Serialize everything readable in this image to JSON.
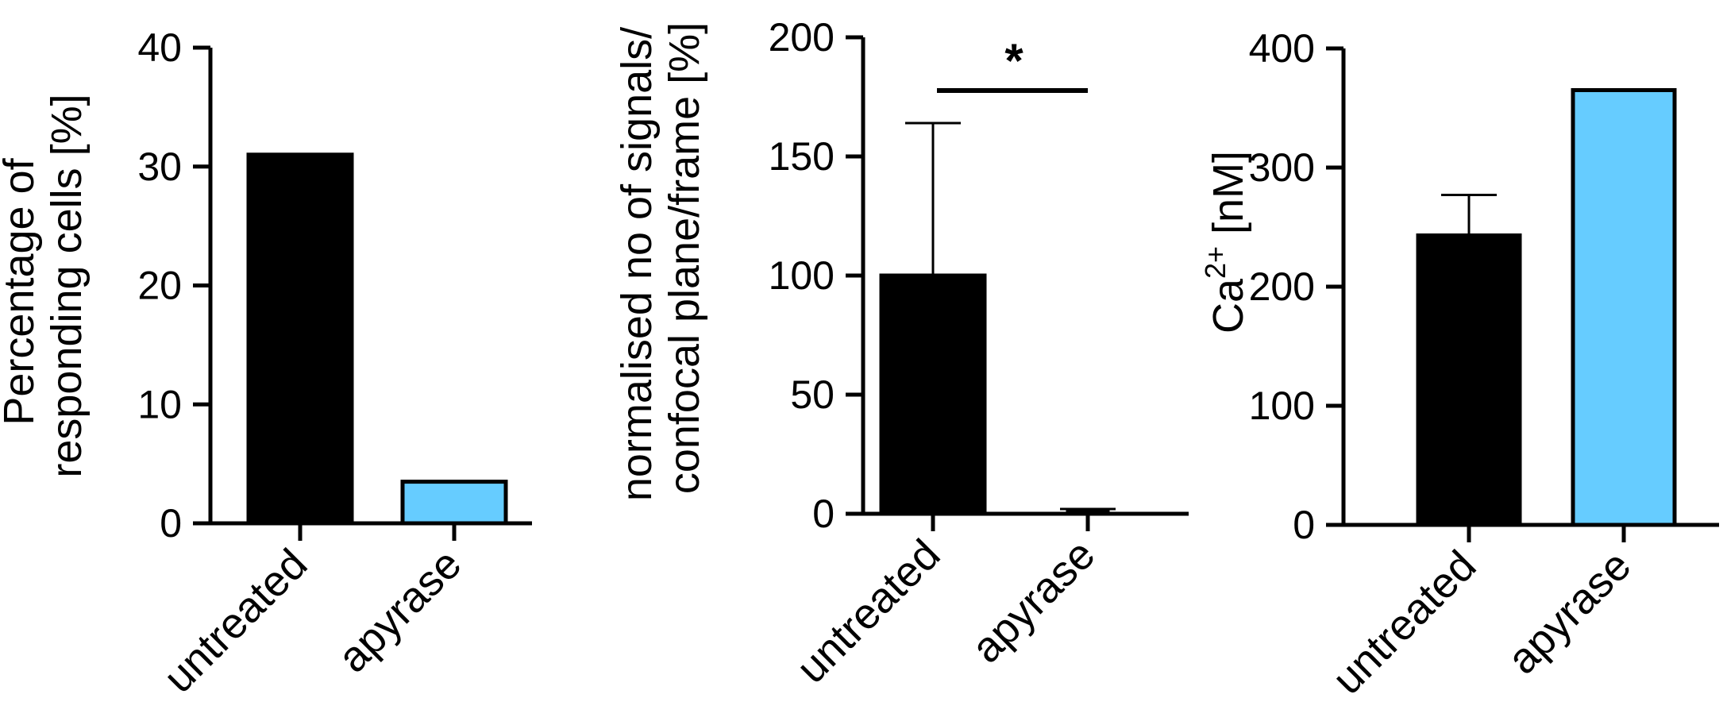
{
  "colors": {
    "untreated": "#000000",
    "apyrase": "#66CCFF",
    "axis": "#000000"
  },
  "chart_data": [
    {
      "type": "bar",
      "categories": [
        "untreated",
        "apyrase"
      ],
      "values": [
        31,
        3.5
      ],
      "errors": [
        null,
        null
      ],
      "ylabel_lines": [
        "Percentage of",
        "responding cells [%]"
      ],
      "ylim": [
        0,
        40
      ],
      "yticks": [
        0,
        10,
        20,
        30,
        40
      ],
      "yticks_labels": [
        "0",
        "10",
        "20",
        "30",
        "40"
      ],
      "grid": false,
      "significance": null
    },
    {
      "type": "bar",
      "categories": [
        "untreated",
        "apyrase"
      ],
      "values": [
        100,
        1
      ],
      "errors": [
        64,
        1
      ],
      "ylabel_lines": [
        "normalised no of signals/",
        "confocal plane/frame [%]"
      ],
      "ylim": [
        0,
        200
      ],
      "yticks": [
        0,
        50,
        100,
        150,
        200
      ],
      "yticks_labels": [
        "0",
        "50",
        "100",
        "150",
        "200"
      ],
      "grid": false,
      "significance": "*"
    },
    {
      "type": "bar",
      "categories": [
        "untreated",
        "apyrase"
      ],
      "values": [
        243,
        365
      ],
      "errors": [
        34,
        null
      ],
      "ylabel_lines": [
        "Ca",
        "2+",
        " [nM]"
      ],
      "ylim": [
        0,
        400
      ],
      "yticks": [
        0,
        100,
        200,
        300,
        400
      ],
      "yticks_labels": [
        "0",
        "100",
        "200",
        "300",
        "400"
      ],
      "grid": false,
      "significance": null
    }
  ]
}
